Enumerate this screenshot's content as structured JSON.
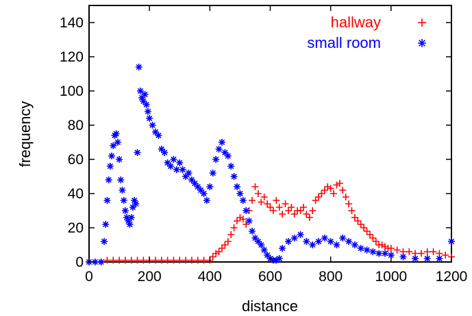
{
  "chart_data": {
    "type": "scatter",
    "xlabel": "distance",
    "ylabel": "frequency",
    "xlim": [
      0,
      1200
    ],
    "ylim": [
      0,
      150
    ],
    "xticks": [
      0,
      200,
      400,
      600,
      800,
      1000,
      1200
    ],
    "yticks": [
      0,
      20,
      40,
      60,
      80,
      100,
      120,
      140
    ],
    "legend_position": "top-right",
    "grid": false,
    "series": [
      {
        "name": "hallway",
        "color": "#ff0000",
        "marker": "+",
        "points": [
          [
            0,
            0
          ],
          [
            20,
            0
          ],
          [
            40,
            0
          ],
          [
            60,
            1
          ],
          [
            80,
            1
          ],
          [
            100,
            1
          ],
          [
            120,
            1
          ],
          [
            140,
            1
          ],
          [
            160,
            1
          ],
          [
            180,
            1
          ],
          [
            200,
            1
          ],
          [
            220,
            1
          ],
          [
            240,
            1
          ],
          [
            260,
            1
          ],
          [
            280,
            1
          ],
          [
            300,
            1
          ],
          [
            320,
            1
          ],
          [
            340,
            1
          ],
          [
            360,
            1
          ],
          [
            380,
            1
          ],
          [
            400,
            1
          ],
          [
            410,
            3
          ],
          [
            420,
            5
          ],
          [
            430,
            6
          ],
          [
            440,
            8
          ],
          [
            450,
            10
          ],
          [
            460,
            12
          ],
          [
            470,
            16
          ],
          [
            480,
            20
          ],
          [
            490,
            24
          ],
          [
            500,
            26
          ],
          [
            510,
            25
          ],
          [
            520,
            22
          ],
          [
            530,
            30
          ],
          [
            540,
            36
          ],
          [
            550,
            44
          ],
          [
            560,
            40
          ],
          [
            570,
            35
          ],
          [
            580,
            38
          ],
          [
            590,
            34
          ],
          [
            600,
            32
          ],
          [
            610,
            30
          ],
          [
            620,
            36
          ],
          [
            630,
            32
          ],
          [
            640,
            28
          ],
          [
            650,
            34
          ],
          [
            660,
            30
          ],
          [
            670,
            32
          ],
          [
            680,
            28
          ],
          [
            690,
            30
          ],
          [
            700,
            30
          ],
          [
            710,
            32
          ],
          [
            720,
            28
          ],
          [
            730,
            26
          ],
          [
            740,
            30
          ],
          [
            750,
            36
          ],
          [
            760,
            38
          ],
          [
            770,
            40
          ],
          [
            780,
            42
          ],
          [
            790,
            44
          ],
          [
            800,
            43
          ],
          [
            810,
            40
          ],
          [
            820,
            45
          ],
          [
            830,
            46
          ],
          [
            840,
            42
          ],
          [
            850,
            38
          ],
          [
            860,
            34
          ],
          [
            870,
            30
          ],
          [
            880,
            26
          ],
          [
            890,
            24
          ],
          [
            900,
            22
          ],
          [
            910,
            20
          ],
          [
            920,
            18
          ],
          [
            930,
            16
          ],
          [
            940,
            14
          ],
          [
            950,
            12
          ],
          [
            960,
            10
          ],
          [
            970,
            10
          ],
          [
            980,
            9
          ],
          [
            990,
            8
          ],
          [
            1000,
            8
          ],
          [
            1020,
            7
          ],
          [
            1040,
            6
          ],
          [
            1060,
            6
          ],
          [
            1080,
            5
          ],
          [
            1100,
            5
          ],
          [
            1120,
            6
          ],
          [
            1140,
            6
          ],
          [
            1160,
            5
          ],
          [
            1180,
            4
          ],
          [
            1200,
            3
          ]
        ]
      },
      {
        "name": "small room",
        "color": "#0000ff",
        "marker": "*",
        "points": [
          [
            0,
            0
          ],
          [
            20,
            0
          ],
          [
            40,
            0
          ],
          [
            50,
            12
          ],
          [
            55,
            22
          ],
          [
            60,
            36
          ],
          [
            65,
            48
          ],
          [
            70,
            56
          ],
          [
            75,
            62
          ],
          [
            80,
            68
          ],
          [
            85,
            74
          ],
          [
            90,
            75
          ],
          [
            95,
            70
          ],
          [
            100,
            60
          ],
          [
            105,
            48
          ],
          [
            110,
            42
          ],
          [
            115,
            36
          ],
          [
            120,
            30
          ],
          [
            125,
            26
          ],
          [
            130,
            24
          ],
          [
            135,
            22
          ],
          [
            140,
            26
          ],
          [
            145,
            32
          ],
          [
            150,
            36
          ],
          [
            155,
            34
          ],
          [
            160,
            64
          ],
          [
            165,
            114
          ],
          [
            170,
            100
          ],
          [
            175,
            96
          ],
          [
            180,
            94
          ],
          [
            185,
            98
          ],
          [
            190,
            92
          ],
          [
            195,
            88
          ],
          [
            200,
            84
          ],
          [
            210,
            80
          ],
          [
            220,
            76
          ],
          [
            230,
            74
          ],
          [
            240,
            66
          ],
          [
            250,
            64
          ],
          [
            260,
            58
          ],
          [
            270,
            56
          ],
          [
            280,
            60
          ],
          [
            290,
            54
          ],
          [
            300,
            58
          ],
          [
            310,
            54
          ],
          [
            320,
            50
          ],
          [
            330,
            52
          ],
          [
            340,
            48
          ],
          [
            350,
            46
          ],
          [
            360,
            44
          ],
          [
            370,
            42
          ],
          [
            380,
            40
          ],
          [
            390,
            36
          ],
          [
            400,
            44
          ],
          [
            410,
            52
          ],
          [
            420,
            60
          ],
          [
            430,
            66
          ],
          [
            440,
            70
          ],
          [
            450,
            64
          ],
          [
            460,
            62
          ],
          [
            470,
            56
          ],
          [
            480,
            50
          ],
          [
            490,
            44
          ],
          [
            500,
            40
          ],
          [
            510,
            36
          ],
          [
            520,
            30
          ],
          [
            530,
            24
          ],
          [
            540,
            18
          ],
          [
            550,
            14
          ],
          [
            560,
            12
          ],
          [
            570,
            10
          ],
          [
            580,
            7
          ],
          [
            590,
            4
          ],
          [
            600,
            2
          ],
          [
            610,
            1
          ],
          [
            620,
            1
          ],
          [
            630,
            2
          ],
          [
            640,
            8
          ],
          [
            660,
            12
          ],
          [
            680,
            14
          ],
          [
            700,
            16
          ],
          [
            720,
            12
          ],
          [
            740,
            10
          ],
          [
            760,
            12
          ],
          [
            780,
            14
          ],
          [
            800,
            12
          ],
          [
            820,
            10
          ],
          [
            840,
            14
          ],
          [
            860,
            12
          ],
          [
            880,
            10
          ],
          [
            900,
            8
          ],
          [
            920,
            7
          ],
          [
            940,
            6
          ],
          [
            960,
            5
          ],
          [
            980,
            5
          ],
          [
            1000,
            4
          ],
          [
            1040,
            3
          ],
          [
            1080,
            2
          ],
          [
            1120,
            2
          ],
          [
            1160,
            2
          ],
          [
            1200,
            12
          ]
        ]
      }
    ]
  }
}
